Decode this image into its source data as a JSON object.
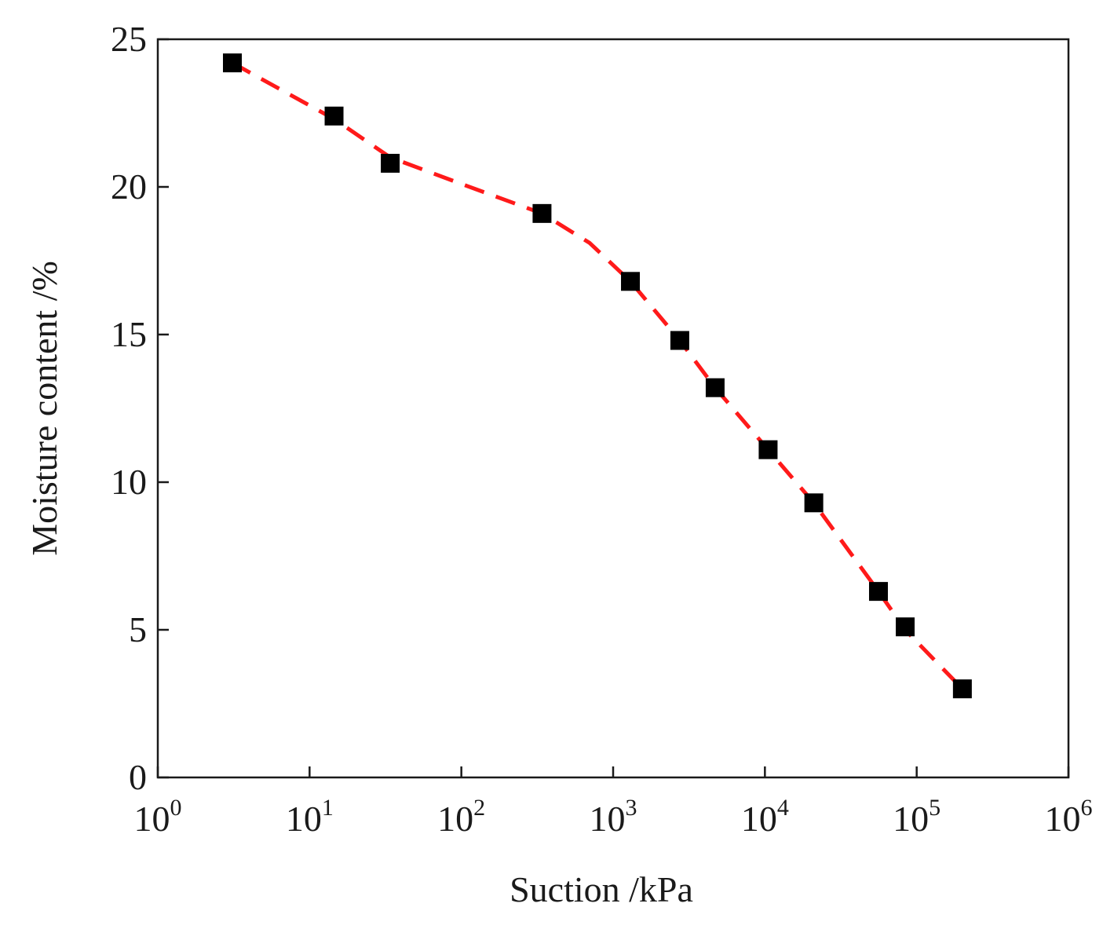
{
  "chart_data": {
    "type": "scatter",
    "title": "",
    "xlabel": "Suction /kPa",
    "ylabel": "Moisture content /%",
    "x_scale": "log",
    "xlim": [
      1,
      1000000
    ],
    "ylim": [
      0,
      25
    ],
    "x_ticks": [
      {
        "base": "10",
        "exp": "0",
        "value": 1
      },
      {
        "base": "10",
        "exp": "1",
        "value": 10
      },
      {
        "base": "10",
        "exp": "2",
        "value": 100
      },
      {
        "base": "10",
        "exp": "3",
        "value": 1000
      },
      {
        "base": "10",
        "exp": "4",
        "value": 10000
      },
      {
        "base": "10",
        "exp": "5",
        "value": 100000
      },
      {
        "base": "10",
        "exp": "6",
        "value": 1000000
      }
    ],
    "y_ticks": [
      0,
      5,
      10,
      15,
      20,
      25
    ],
    "grid": false,
    "legend": "none",
    "series": [
      {
        "kind": "points",
        "marker": "square",
        "color": "#000000",
        "x": [
          3.1,
          14.5,
          34,
          340,
          1300,
          2750,
          4700,
          10500,
          21000,
          56000,
          84000,
          200000
        ],
        "y": [
          24.2,
          22.4,
          20.8,
          19.1,
          16.8,
          14.8,
          13.2,
          11.1,
          9.3,
          6.3,
          5.1,
          3.0
        ]
      },
      {
        "kind": "fit-line",
        "line_style": "dashed",
        "color": "#ff1a1a",
        "x": [
          3.1,
          14.5,
          34,
          100,
          340,
          700,
          1300,
          2750,
          4700,
          10500,
          21000,
          56000,
          84000,
          200000
        ],
        "y": [
          24.2,
          22.3,
          21.0,
          20.1,
          19.1,
          18.1,
          16.8,
          14.8,
          13.2,
          11.1,
          9.3,
          6.3,
          5.0,
          3.0
        ]
      }
    ]
  }
}
